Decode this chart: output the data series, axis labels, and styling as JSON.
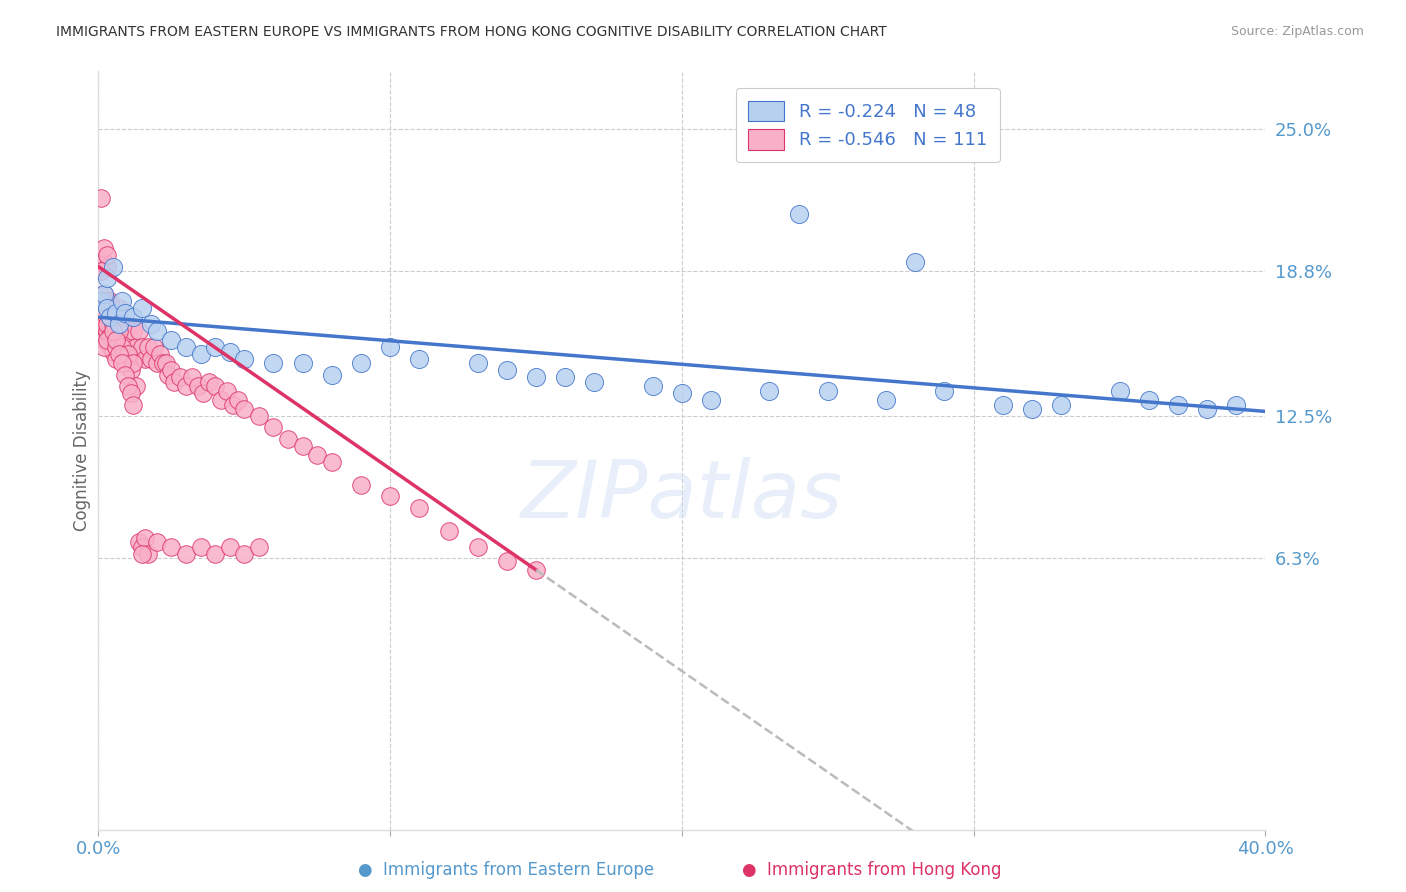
{
  "title": "IMMIGRANTS FROM EASTERN EUROPE VS IMMIGRANTS FROM HONG KONG COGNITIVE DISABILITY CORRELATION CHART",
  "source": "Source: ZipAtlas.com",
  "ylabel": "Cognitive Disability",
  "yticks": [
    0.063,
    0.125,
    0.188,
    0.25
  ],
  "ytick_labels": [
    "6.3%",
    "12.5%",
    "18.8%",
    "25.0%"
  ],
  "xmin": 0.0,
  "xmax": 0.4,
  "ymin": -0.055,
  "ymax": 0.275,
  "watermark": "ZIPatlas",
  "legend_label1": "R = -0.224   N = 48",
  "legend_label2": "R = -0.546   N = 111",
  "series1_color": "#b8d0f0",
  "series2_color": "#f8b0c8",
  "trend1_color": "#4477cc",
  "trend2_color": "#dd3366",
  "trend2_ext_color": "#bbbbbb",
  "axis_color": "#5599cc",
  "grid_color": "#cccccc",
  "title_color": "#333333",
  "source_color": "#999999",
  "bottom_label1": "Immigrants from Eastern Europe",
  "bottom_label2": "Immigrants from Hong Kong",
  "series1_x": [
    0.001,
    0.002,
    0.003,
    0.003,
    0.004,
    0.005,
    0.006,
    0.007,
    0.008,
    0.009,
    0.012,
    0.015,
    0.018,
    0.02,
    0.025,
    0.03,
    0.035,
    0.04,
    0.045,
    0.05,
    0.06,
    0.07,
    0.08,
    0.09,
    0.1,
    0.11,
    0.13,
    0.15,
    0.17,
    0.19,
    0.21,
    0.23,
    0.25,
    0.27,
    0.29,
    0.31,
    0.33,
    0.35,
    0.37,
    0.39,
    0.2,
    0.24,
    0.28,
    0.32,
    0.36,
    0.38,
    0.16,
    0.14
  ],
  "series1_y": [
    0.175,
    0.178,
    0.172,
    0.185,
    0.168,
    0.19,
    0.17,
    0.165,
    0.175,
    0.17,
    0.168,
    0.172,
    0.165,
    0.162,
    0.158,
    0.155,
    0.152,
    0.155,
    0.153,
    0.15,
    0.148,
    0.148,
    0.143,
    0.148,
    0.155,
    0.15,
    0.148,
    0.142,
    0.14,
    0.138,
    0.132,
    0.136,
    0.136,
    0.132,
    0.136,
    0.13,
    0.13,
    0.136,
    0.13,
    0.13,
    0.135,
    0.213,
    0.192,
    0.128,
    0.132,
    0.128,
    0.142,
    0.145
  ],
  "series2_x": [
    0.001,
    0.001,
    0.001,
    0.002,
    0.002,
    0.002,
    0.002,
    0.003,
    0.003,
    0.003,
    0.004,
    0.004,
    0.004,
    0.005,
    0.005,
    0.005,
    0.006,
    0.006,
    0.006,
    0.007,
    0.007,
    0.008,
    0.008,
    0.009,
    0.009,
    0.01,
    0.01,
    0.011,
    0.012,
    0.012,
    0.013,
    0.014,
    0.015,
    0.016,
    0.017,
    0.018,
    0.019,
    0.02,
    0.021,
    0.022,
    0.023,
    0.024,
    0.025,
    0.026,
    0.028,
    0.03,
    0.032,
    0.034,
    0.036,
    0.038,
    0.04,
    0.042,
    0.044,
    0.046,
    0.048,
    0.05,
    0.055,
    0.06,
    0.065,
    0.07,
    0.075,
    0.08,
    0.09,
    0.1,
    0.11,
    0.12,
    0.13,
    0.14,
    0.15,
    0.001,
    0.002,
    0.003,
    0.004,
    0.002,
    0.003,
    0.001,
    0.002,
    0.003,
    0.004,
    0.005,
    0.006,
    0.007,
    0.008,
    0.009,
    0.01,
    0.011,
    0.012,
    0.013,
    0.014,
    0.015,
    0.016,
    0.017,
    0.003,
    0.004,
    0.005,
    0.006,
    0.007,
    0.008,
    0.009,
    0.01,
    0.011,
    0.012,
    0.015,
    0.02,
    0.025,
    0.03,
    0.035,
    0.04,
    0.045,
    0.05,
    0.055
  ],
  "series2_y": [
    0.22,
    0.175,
    0.165,
    0.192,
    0.178,
    0.165,
    0.158,
    0.19,
    0.175,
    0.162,
    0.172,
    0.165,
    0.155,
    0.168,
    0.16,
    0.153,
    0.165,
    0.158,
    0.15,
    0.158,
    0.172,
    0.165,
    0.158,
    0.158,
    0.165,
    0.162,
    0.155,
    0.158,
    0.162,
    0.152,
    0.155,
    0.162,
    0.155,
    0.15,
    0.155,
    0.15,
    0.155,
    0.148,
    0.152,
    0.148,
    0.148,
    0.143,
    0.145,
    0.14,
    0.142,
    0.138,
    0.142,
    0.138,
    0.135,
    0.14,
    0.138,
    0.132,
    0.136,
    0.13,
    0.132,
    0.128,
    0.125,
    0.12,
    0.115,
    0.112,
    0.108,
    0.105,
    0.095,
    0.09,
    0.085,
    0.075,
    0.068,
    0.062,
    0.058,
    0.175,
    0.17,
    0.165,
    0.16,
    0.198,
    0.195,
    0.188,
    0.155,
    0.158,
    0.175,
    0.165,
    0.155,
    0.162,
    0.155,
    0.148,
    0.152,
    0.145,
    0.148,
    0.138,
    0.07,
    0.068,
    0.072,
    0.065,
    0.175,
    0.168,
    0.162,
    0.158,
    0.152,
    0.148,
    0.143,
    0.138,
    0.135,
    0.13,
    0.065,
    0.07,
    0.068,
    0.065,
    0.068,
    0.065,
    0.068,
    0.065,
    0.068
  ],
  "trend1_x_start": 0.0,
  "trend1_x_end": 0.4,
  "trend1_y_start": 0.168,
  "trend1_y_end": 0.127,
  "trend2_x_start": 0.0,
  "trend2_x_end": 0.15,
  "trend2_y_start": 0.19,
  "trend2_y_end": 0.058,
  "trend2_ext_x_end": 0.4
}
